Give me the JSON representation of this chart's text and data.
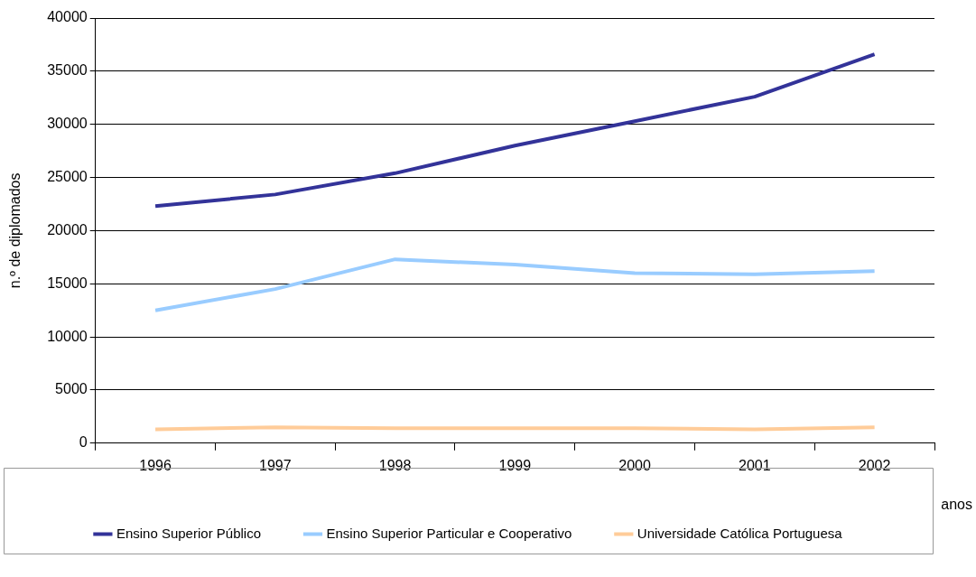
{
  "chart_data": {
    "type": "line",
    "xlabel": "anos",
    "ylabel": "n.º de diplomados",
    "categories": [
      "1996",
      "1997",
      "1998",
      "1999",
      "2000",
      "2001",
      "2002"
    ],
    "series": [
      {
        "name": "Ensino Superior Público",
        "color": "#333399",
        "values": [
          22300,
          23400,
          25400,
          28000,
          30300,
          32600,
          36600
        ]
      },
      {
        "name": "Ensino Superior Particular e Cooperativo",
        "color": "#99ccff",
        "values": [
          12500,
          14500,
          17300,
          16800,
          16000,
          15900,
          16200
        ]
      },
      {
        "name": "Universidade Católica Portuguesa",
        "color": "#ffcc99",
        "values": [
          1300,
          1500,
          1400,
          1400,
          1400,
          1300,
          1500
        ]
      }
    ],
    "ylim": [
      0,
      40000
    ],
    "yticks": [
      0,
      5000,
      10000,
      15000,
      20000,
      25000,
      30000,
      35000,
      40000
    ],
    "grid": "y",
    "legend": "bottom",
    "marker": "none",
    "line_style": "solid"
  }
}
